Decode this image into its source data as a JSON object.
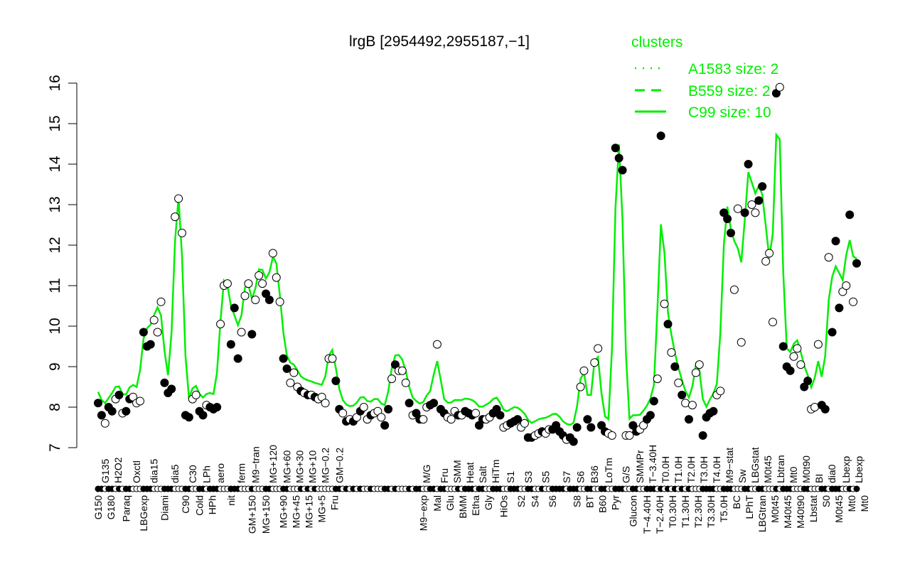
{
  "chart_data": {
    "type": "scatter",
    "title": "lrgB [2954492,2955187,−1]",
    "xlabel": "",
    "ylabel": "",
    "ylim": [
      7,
      16
    ],
    "yticks": [
      "7",
      "8",
      "9",
      "10",
      "11",
      "12",
      "13",
      "14",
      "15",
      "16"
    ],
    "grid": false,
    "legend": {
      "title": "clusters",
      "placement": "top-right",
      "color": "#00ee00",
      "entries": [
        {
          "name": "A1583 size: 2",
          "style": "dotted"
        },
        {
          "name": "B559 size: 2",
          "style": "dashed"
        },
        {
          "name": "C99 size: 10",
          "style": "solid"
        }
      ]
    },
    "point_colors": {
      "filled": "#000000",
      "open": "#ffffff",
      "line": "#00ee00"
    },
    "points": [
      [
        8.1,
        1,
        "G150"
      ],
      [
        7.8,
        1,
        ""
      ],
      [
        7.6,
        0,
        "G135"
      ],
      [
        8.0,
        1,
        "G180"
      ],
      [
        7.9,
        1,
        ""
      ],
      [
        8.2,
        0,
        "H2O2"
      ],
      [
        8.3,
        1,
        ""
      ],
      [
        7.85,
        0,
        ""
      ],
      [
        7.9,
        1,
        "Paraq"
      ],
      [
        8.2,
        1,
        ""
      ],
      [
        8.25,
        0,
        ""
      ],
      [
        8.1,
        0,
        "Oxctl"
      ],
      [
        8.15,
        0,
        ""
      ],
      [
        9.85,
        1,
        "LBGexp"
      ],
      [
        9.5,
        1,
        ""
      ],
      [
        9.55,
        1,
        ""
      ],
      [
        10.15,
        0,
        "dia15"
      ],
      [
        9.85,
        0,
        ""
      ],
      [
        10.6,
        0,
        ""
      ],
      [
        8.6,
        1,
        "Diami"
      ],
      [
        8.35,
        1,
        ""
      ],
      [
        8.45,
        1,
        ""
      ],
      [
        12.7,
        0,
        "dia5"
      ],
      [
        13.15,
        0,
        ""
      ],
      [
        12.3,
        0,
        ""
      ],
      [
        7.8,
        1,
        "C90"
      ],
      [
        7.75,
        1,
        ""
      ],
      [
        8.2,
        0,
        "C30"
      ],
      [
        8.3,
        0,
        ""
      ],
      [
        7.9,
        1,
        "Cold"
      ],
      [
        7.8,
        1,
        ""
      ],
      [
        8.05,
        0,
        "LPh"
      ],
      [
        8.0,
        1,
        "HPh"
      ],
      [
        7.95,
        1,
        ""
      ],
      [
        8.0,
        1,
        ""
      ],
      [
        10.05,
        0,
        "aero"
      ],
      [
        11.0,
        0,
        ""
      ],
      [
        11.05,
        0,
        ""
      ],
      [
        9.55,
        1,
        "nit"
      ],
      [
        10.45,
        1,
        ""
      ],
      [
        9.2,
        1,
        ""
      ],
      [
        9.85,
        0,
        "ferm"
      ],
      [
        10.75,
        0,
        ""
      ],
      [
        11.05,
        0,
        ""
      ],
      [
        9.8,
        1,
        "GM+150"
      ],
      [
        10.65,
        0,
        "M9−tran"
      ],
      [
        11.25,
        0,
        ""
      ],
      [
        11.05,
        0,
        ""
      ],
      [
        10.8,
        1,
        "MG+150"
      ],
      [
        10.65,
        1,
        ""
      ],
      [
        11.8,
        0,
        "MG+120"
      ],
      [
        11.2,
        0,
        ""
      ],
      [
        10.6,
        0,
        ""
      ],
      [
        9.2,
        1,
        "MG+90"
      ],
      [
        8.95,
        1,
        "MG+60"
      ],
      [
        8.6,
        0,
        "MG+45"
      ],
      [
        8.85,
        0,
        "MG+30"
      ],
      [
        8.5,
        0,
        "MG+15"
      ],
      [
        8.4,
        1,
        "MG+10"
      ],
      [
        8.35,
        0,
        "MG+5"
      ],
      [
        8.3,
        1,
        "MG−0.2"
      ],
      [
        8.3,
        0,
        ""
      ],
      [
        8.25,
        1,
        ""
      ],
      [
        8.2,
        0,
        ""
      ],
      [
        8.25,
        0,
        ""
      ],
      [
        8.1,
        0,
        "Fru"
      ],
      [
        9.2,
        0,
        ""
      ],
      [
        9.2,
        0,
        ""
      ],
      [
        8.65,
        1,
        ""
      ],
      [
        7.95,
        1,
        "GM−0.2"
      ],
      [
        7.85,
        0,
        ""
      ],
      [
        7.65,
        1,
        ""
      ],
      [
        7.7,
        0,
        ""
      ],
      [
        7.65,
        1,
        ""
      ],
      [
        7.75,
        0,
        ""
      ],
      [
        7.9,
        1,
        ""
      ],
      [
        8.0,
        0,
        ""
      ],
      [
        7.7,
        0,
        ""
      ],
      [
        7.8,
        1,
        ""
      ],
      [
        7.85,
        0,
        ""
      ],
      [
        7.9,
        0,
        ""
      ],
      [
        7.75,
        0,
        ""
      ],
      [
        7.55,
        1,
        ""
      ],
      [
        7.95,
        1,
        ""
      ],
      [
        8.7,
        0,
        ""
      ],
      [
        9.05,
        1,
        ""
      ],
      [
        8.9,
        0,
        ""
      ],
      [
        8.9,
        0,
        ""
      ],
      [
        8.6,
        0,
        ""
      ],
      [
        8.1,
        1,
        ""
      ],
      [
        7.8,
        0,
        ""
      ],
      [
        7.85,
        1,
        ""
      ],
      [
        7.7,
        1,
        ""
      ],
      [
        7.7,
        0,
        "M9−exp"
      ],
      [
        8.0,
        0,
        "M/G"
      ],
      [
        8.05,
        1,
        ""
      ],
      [
        8.1,
        1,
        ""
      ],
      [
        9.55,
        0,
        "Mal"
      ],
      [
        7.95,
        1,
        ""
      ],
      [
        7.85,
        1,
        "Fru"
      ],
      [
        7.75,
        0,
        "Glu"
      ],
      [
        7.7,
        0,
        ""
      ],
      [
        7.9,
        0,
        "SMM"
      ],
      [
        7.8,
        1,
        ""
      ],
      [
        7.8,
        0,
        "BMM"
      ],
      [
        7.9,
        1,
        ""
      ],
      [
        7.85,
        1,
        "Heat"
      ],
      [
        7.8,
        1,
        ""
      ],
      [
        7.85,
        0,
        "Etha"
      ],
      [
        7.55,
        1,
        "Salt"
      ],
      [
        7.7,
        1,
        ""
      ],
      [
        7.7,
        0,
        "Gly"
      ],
      [
        7.75,
        0,
        ""
      ],
      [
        7.85,
        1,
        "HiTm"
      ],
      [
        7.95,
        1,
        ""
      ],
      [
        7.8,
        1,
        ""
      ],
      [
        7.5,
        0,
        "HiOs"
      ],
      [
        7.55,
        0,
        ""
      ],
      [
        7.6,
        1,
        "S1"
      ],
      [
        7.65,
        1,
        ""
      ],
      [
        7.7,
        1,
        ""
      ],
      [
        7.5,
        0,
        "S2"
      ],
      [
        7.6,
        0,
        ""
      ],
      [
        7.25,
        1,
        "S3"
      ],
      [
        7.25,
        1,
        ""
      ],
      [
        7.3,
        0,
        "S4"
      ],
      [
        7.35,
        0,
        ""
      ],
      [
        7.4,
        1,
        ""
      ],
      [
        7.35,
        0,
        "S5"
      ],
      [
        7.45,
        0,
        ""
      ],
      [
        7.45,
        1,
        "S6"
      ],
      [
        7.55,
        1,
        ""
      ],
      [
        7.4,
        1,
        ""
      ],
      [
        7.3,
        1,
        ""
      ],
      [
        7.2,
        0,
        "S7"
      ],
      [
        7.25,
        1,
        ""
      ],
      [
        7.15,
        1,
        ""
      ],
      [
        7.5,
        1,
        "S8"
      ],
      [
        8.5,
        0,
        "S6"
      ],
      [
        8.9,
        0,
        ""
      ],
      [
        7.7,
        1,
        "BT"
      ],
      [
        7.5,
        1,
        ""
      ],
      [
        9.1,
        0,
        "B36"
      ],
      [
        9.45,
        0,
        ""
      ],
      [
        7.55,
        1,
        "B60"
      ],
      [
        7.4,
        1,
        ""
      ],
      [
        7.35,
        0,
        "LoTm"
      ],
      [
        7.3,
        0,
        ""
      ],
      [
        14.4,
        1,
        "Pyr"
      ],
      [
        14.15,
        1,
        ""
      ],
      [
        13.85,
        1,
        ""
      ],
      [
        7.3,
        0,
        "G/S"
      ],
      [
        7.3,
        0,
        ""
      ],
      [
        7.55,
        1,
        "Glucon"
      ],
      [
        7.4,
        1,
        ""
      ],
      [
        7.45,
        0,
        "SMMPr"
      ],
      [
        7.55,
        0,
        ""
      ],
      [
        7.7,
        1,
        "T−4.40H"
      ],
      [
        7.8,
        1,
        "T−3.40H"
      ],
      [
        8.15,
        1,
        "T−2.40H"
      ],
      [
        8.7,
        0,
        "T0.0H"
      ],
      [
        14.7,
        1,
        "T0.30H"
      ],
      [
        10.55,
        0,
        "T1.0H"
      ],
      [
        10.05,
        1,
        "T1.30H"
      ],
      [
        9.35,
        0,
        "T2.0H"
      ],
      [
        9.0,
        1,
        "T2.30H"
      ],
      [
        8.6,
        0,
        "T3.0H"
      ],
      [
        8.3,
        1,
        "T3.30H"
      ],
      [
        8.1,
        0,
        "T4.0H"
      ],
      [
        7.7,
        1,
        "T5.0H"
      ],
      [
        8.05,
        0,
        "M9−stat"
      ],
      [
        8.85,
        0,
        ""
      ],
      [
        9.05,
        0,
        ""
      ],
      [
        7.3,
        1,
        "BC"
      ],
      [
        7.75,
        1,
        ""
      ],
      [
        7.85,
        1,
        ""
      ],
      [
        7.9,
        1,
        ""
      ],
      [
        8.3,
        0,
        "Sw"
      ],
      [
        8.4,
        0,
        ""
      ],
      [
        12.8,
        1,
        "LPhT"
      ],
      [
        12.65,
        1,
        ""
      ],
      [
        12.3,
        1,
        ""
      ],
      [
        10.9,
        0,
        "LBGstat"
      ],
      [
        12.9,
        0,
        ""
      ],
      [
        9.6,
        0,
        ""
      ],
      [
        12.8,
        1,
        "LBGtran"
      ],
      [
        14.0,
        1,
        ""
      ],
      [
        13.0,
        0,
        "M0t45"
      ],
      [
        12.8,
        0,
        ""
      ],
      [
        13.1,
        1,
        "M0t45"
      ],
      [
        13.45,
        1,
        ""
      ],
      [
        11.6,
        0,
        "Lbtran"
      ],
      [
        11.8,
        0,
        ""
      ],
      [
        10.1,
        0,
        "M40t45"
      ],
      [
        15.75,
        1,
        "Mt0"
      ],
      [
        15.9,
        0,
        ""
      ],
      [
        9.5,
        1,
        "M40t90"
      ],
      [
        9.0,
        1,
        ""
      ],
      [
        8.9,
        1,
        ""
      ],
      [
        9.25,
        0,
        "M0t90"
      ],
      [
        9.45,
        0,
        ""
      ],
      [
        9.05,
        0,
        ""
      ],
      [
        8.5,
        1,
        "Lbstat"
      ],
      [
        8.65,
        1,
        ""
      ],
      [
        7.95,
        0,
        "BI"
      ],
      [
        8.0,
        0,
        ""
      ],
      [
        9.55,
        0,
        "S0"
      ],
      [
        8.05,
        1,
        ""
      ],
      [
        7.95,
        1,
        ""
      ],
      [
        11.7,
        0,
        "dia0"
      ],
      [
        9.85,
        1,
        ""
      ],
      [
        12.1,
        1,
        "M0t45"
      ],
      [
        10.45,
        1,
        ""
      ],
      [
        10.85,
        0,
        ""
      ],
      [
        11.0,
        0,
        "Lbexp"
      ],
      [
        12.75,
        1,
        "Mt0"
      ],
      [
        10.6,
        0,
        "Lbexp"
      ],
      [
        11.55,
        1,
        "Mt0"
      ]
    ]
  }
}
